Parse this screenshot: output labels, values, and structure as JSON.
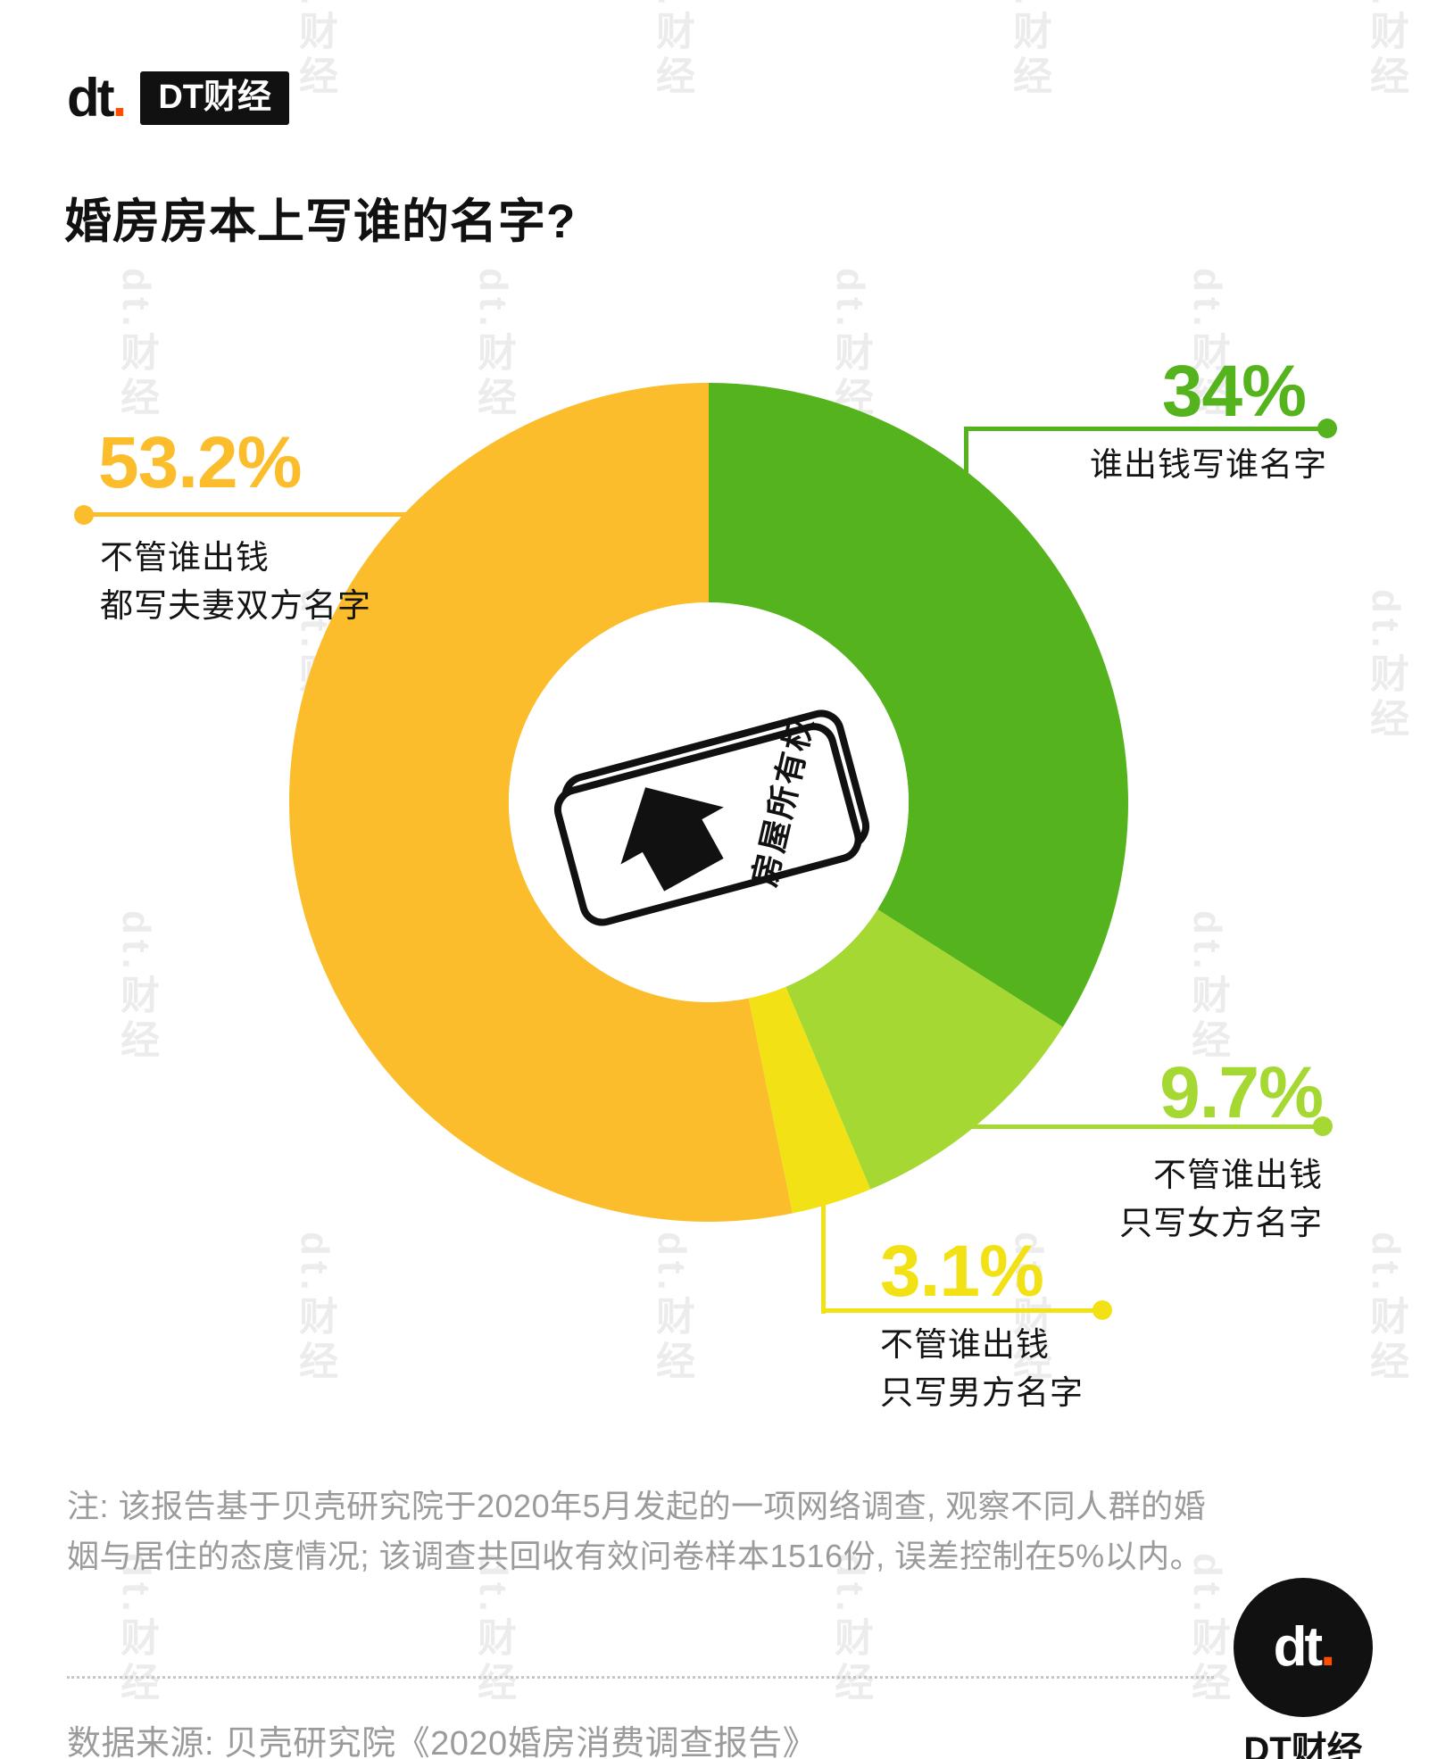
{
  "brand": {
    "mark": "dt",
    "dot": ".",
    "name": "DT财经",
    "accent": "#FF4E00"
  },
  "watermark": "dt.财经",
  "title": "婚房房本上写谁的名字?",
  "chart_data": {
    "type": "pie",
    "subtype": "donut",
    "title": "婚房房本上写谁的名字?",
    "unit": "%",
    "start_angle_deg": -90,
    "direction": "clockwise",
    "legend_position": "callouts",
    "center_icon_text": "房屋所有权",
    "segments": [
      {
        "id": "whoever-pays",
        "value": 34,
        "display": "34%",
        "color": "#55B41E",
        "label_lines": [
          "谁出钱写谁名字"
        ]
      },
      {
        "id": "only-woman",
        "value": 9.7,
        "display": "9.7%",
        "color": "#A5D832",
        "label_lines": [
          "不管谁出钱",
          "只写女方名字"
        ]
      },
      {
        "id": "only-man",
        "value": 3.1,
        "display": "3.1%",
        "color": "#F2E215",
        "label_lines": [
          "不管谁出钱",
          "只写男方名字"
        ]
      },
      {
        "id": "both-names",
        "value": 53.2,
        "display": "53.2%",
        "color": "#FBBD2B",
        "label_lines": [
          "不管谁出钱",
          "都写夫妻双方名字"
        ]
      }
    ]
  },
  "footnote": "注: 该报告基于贝壳研究院于2020年5月发起的一项网络调查, 观察不同人群的婚姻与居住的态度情况; 该调查共回收有效问卷样本1516份, 误差控制在5%以内。",
  "source": "数据来源: 贝壳研究院《2020婚房消费调查报告》"
}
